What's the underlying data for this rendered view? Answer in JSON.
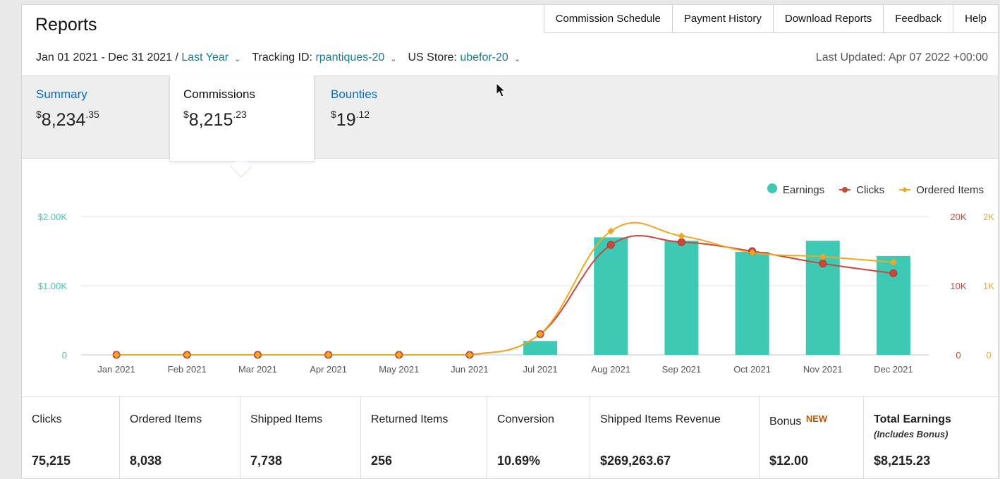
{
  "page": {
    "title": "Reports",
    "nav": [
      "Commission Schedule",
      "Payment History",
      "Download Reports",
      "Feedback",
      "Help"
    ],
    "filters": {
      "date_range": "Jan 01 2021 - Dec 31 2021 /",
      "date_preset": "Last Year",
      "tracking_label": "Tracking ID:",
      "tracking_value": "rpantiques-20",
      "store_label": "US Store:",
      "store_value": "ubefor-20"
    },
    "last_updated": "Last Updated: Apr 07 2022 +00:00"
  },
  "summary": {
    "items": [
      {
        "label": "Summary",
        "currency": "$",
        "whole": "8,234",
        "cents": ".35"
      },
      {
        "label": "Commissions",
        "currency": "$",
        "whole": "8,215",
        "cents": ".23"
      },
      {
        "label": "Bounties",
        "currency": "$",
        "whole": "19",
        "cents": ".12"
      }
    ]
  },
  "chart_data": {
    "type": "bar",
    "categories": [
      "Jan 2021",
      "Feb 2021",
      "Mar 2021",
      "Apr 2021",
      "May 2021",
      "Jun 2021",
      "Jul 2021",
      "Aug 2021",
      "Sep 2021",
      "Oct 2021",
      "Nov 2021",
      "Dec 2021"
    ],
    "series": [
      {
        "name": "Earnings",
        "type": "bar",
        "axis": "left",
        "color": "#3ec9b4",
        "values": [
          0,
          0,
          0,
          0,
          0,
          0,
          200,
          1700,
          1650,
          1490,
          1650,
          1430
        ]
      },
      {
        "name": "Clicks",
        "type": "line",
        "axis": "right1",
        "color": "#c9473b",
        "values": [
          0,
          0,
          0,
          0,
          0,
          0,
          3000,
          15900,
          16300,
          15000,
          13200,
          11800
        ]
      },
      {
        "name": "Ordered Items",
        "type": "line",
        "axis": "right2",
        "color": "#f0a824",
        "values": [
          0,
          0,
          0,
          0,
          0,
          0,
          300,
          1790,
          1720,
          1480,
          1420,
          1340
        ]
      }
    ],
    "left_axis": {
      "ticks": [
        "0",
        "$1.00K",
        "$2.00K"
      ],
      "ylim": [
        0,
        2000
      ],
      "color": "#3ec9b4"
    },
    "right_axis_1": {
      "ticks": [
        "0",
        "10K",
        "20K"
      ],
      "ylim": [
        0,
        20000
      ],
      "color": "#c9473b"
    },
    "right_axis_2": {
      "ticks": [
        "0",
        "1K",
        "2K"
      ],
      "ylim": [
        0,
        2000
      ],
      "color": "#f0a824"
    },
    "grid": true,
    "legend": "top-right"
  },
  "metrics": [
    {
      "label": "Clicks",
      "value": "75,215"
    },
    {
      "label": "Ordered Items",
      "value": "8,038"
    },
    {
      "label": "Shipped Items",
      "value": "7,738"
    },
    {
      "label": "Returned Items",
      "value": "256"
    },
    {
      "label": "Conversion",
      "value": "10.69%"
    },
    {
      "label": "Shipped Items Revenue",
      "value": "$269,263.67"
    },
    {
      "label": "Bonus",
      "badge": "NEW",
      "value": "$12.00"
    },
    {
      "label": "Total Earnings",
      "sub": "(Includes Bonus)",
      "value": "$8,215.23"
    }
  ]
}
